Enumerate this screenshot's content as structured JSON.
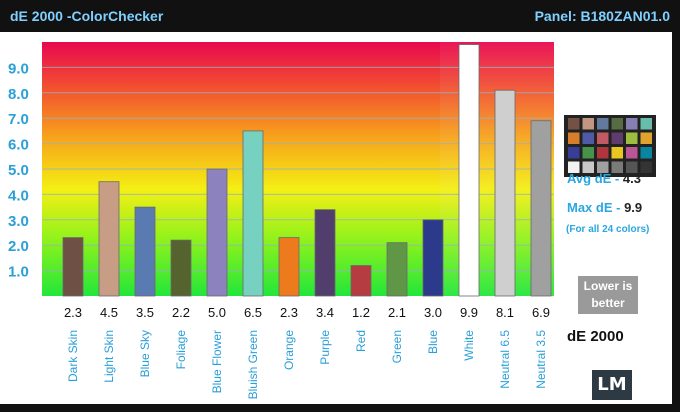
{
  "header": {
    "title": "dE 2000 -ColorChecker",
    "panel": "Panel: B180ZAN01.0"
  },
  "chart_data": {
    "type": "bar",
    "title": "",
    "xlabel": "",
    "ylabel": "",
    "ylim": [
      0,
      10
    ],
    "yticks": [
      "1.0",
      "2.0",
      "3.0",
      "4.0",
      "5.0",
      "6.0",
      "7.0",
      "8.0",
      "9.0"
    ],
    "categories": [
      "Dark Skin",
      "Light Skin",
      "Blue Sky",
      "Foliage",
      "Blue Flower",
      "Bluish Green",
      "Orange",
      "Purple",
      "Red",
      "Green",
      "Blue",
      "White",
      "Neutral 6.5",
      "Neutral 3.5"
    ],
    "values": [
      2.3,
      4.5,
      3.5,
      2.2,
      5.0,
      6.5,
      2.3,
      3.4,
      1.2,
      2.1,
      3.0,
      9.9,
      8.1,
      6.9
    ],
    "value_labels": [
      "2.3",
      "4.5",
      "3.5",
      "2.2",
      "5.0",
      "6.5",
      "2.3",
      "3.4",
      "1.2",
      "2.1",
      "3.0",
      "9.9",
      "8.1",
      "6.9"
    ],
    "bar_colors": [
      "#6e5044",
      "#c79d86",
      "#5a7ab2",
      "#55632f",
      "#8c82be",
      "#76d1c0",
      "#ee7a1e",
      "#513e6c",
      "#b53c40",
      "#5f9747",
      "#2c3a8c",
      "#ffffff",
      "#cfcfcf",
      "#a0a0a0"
    ],
    "grid": true,
    "background": "gradient green-yellow-orange-red"
  },
  "checker_swatches": [
    "#735244",
    "#c29682",
    "#627a9d",
    "#576c43",
    "#8580b1",
    "#67bdaa",
    "#d67e2c",
    "#505ba6",
    "#c15a63",
    "#5e3c6c",
    "#9dbc40",
    "#e0a32e",
    "#383d96",
    "#469449",
    "#af363c",
    "#e7c71f",
    "#bb5695",
    "#0885a1",
    "#f3f3f2",
    "#c8c8c8",
    "#a0a0a0",
    "#7a7a79",
    "#555555",
    "#343434"
  ],
  "stats": {
    "avg_label": "Avg dE - ",
    "avg_value": "4.3",
    "max_label": "Max dE - ",
    "max_value": "9.9",
    "note": "(For all 24 colors)",
    "lower_line1": "Lower is",
    "lower_line2": "better",
    "unit": "dE 2000"
  },
  "logo_text": "LM"
}
